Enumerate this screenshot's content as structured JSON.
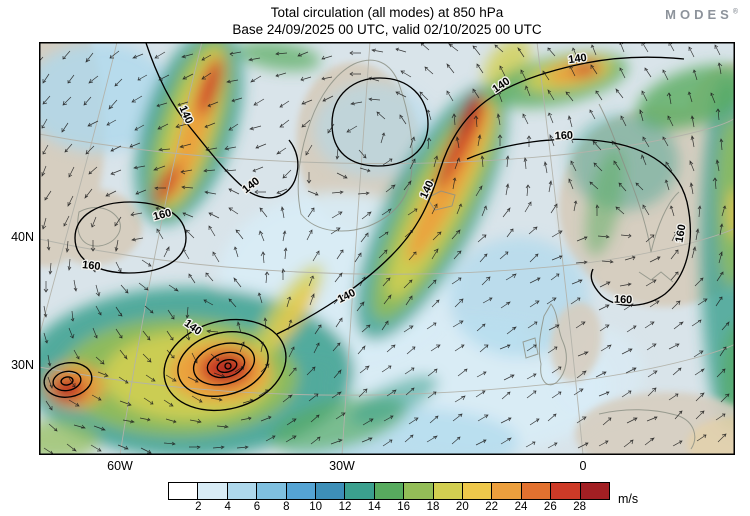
{
  "header": {
    "title_line1": "Total circulation (all modes) at 850 hPa",
    "title_line2": "Base 24/09/2025 00 UTC, valid 02/10/2025 00 UTC",
    "logo_text": "MODES",
    "logo_mark": "®"
  },
  "map": {
    "y_tick_labels": [
      "40N",
      "30N"
    ],
    "x_tick_labels": [
      "60W",
      "30W",
      "0"
    ],
    "contour_label_140": "140",
    "contour_label_160": "160"
  },
  "colorbar": {
    "tick_labels": [
      "2",
      "4",
      "6",
      "8",
      "10",
      "12",
      "14",
      "16",
      "18",
      "20",
      "22",
      "24",
      "26",
      "28"
    ],
    "unit": "m/s",
    "colors": [
      "#ffffff",
      "#d8ecf6",
      "#aed8ec",
      "#7fc0e0",
      "#55a4d4",
      "#3d8fb8",
      "#3ba08e",
      "#57ab5e",
      "#93bd57",
      "#d2cf51",
      "#eec84b",
      "#ec9f3d",
      "#e2712f",
      "#cd3a27",
      "#a21f23"
    ]
  },
  "chart_data": {
    "type": "heatmap",
    "title": "Total circulation (all modes) at 850 hPa",
    "subtitle": "Base 24/09/2025 00 UTC, valid 02/10/2025 00 UTC",
    "field": "wind speed of total circulation (all modes) at 850 hPa",
    "units": "m/s",
    "region": "North Atlantic and Europe",
    "x_ticks": [
      "60W",
      "30W",
      "0"
    ],
    "y_ticks": [
      "40N",
      "30N"
    ],
    "colorbar_levels": [
      2,
      4,
      6,
      8,
      10,
      12,
      14,
      16,
      18,
      20,
      22,
      24,
      26,
      28
    ],
    "colorbar_colors": [
      "#ffffff",
      "#d8ecf6",
      "#aed8ec",
      "#7fc0e0",
      "#55a4d4",
      "#3d8fb8",
      "#3ba08e",
      "#57ab5e",
      "#93bd57",
      "#d2cf51",
      "#eec84b",
      "#ec9f3d",
      "#e2712f",
      "#cd3a27",
      "#a21f23"
    ],
    "contour_labels_visible": [
      140,
      160
    ],
    "overlays": [
      "wind direction arrows (black)",
      "black circulation contours labeled 140 and 160",
      "gray coastlines and graticule"
    ],
    "notable_features": [
      "two cyclonic vortices with nested closed contours and wind maxima above 26 m/s near 30N around 60W-70W",
      "elongated high-wind band (cores above 24 m/s) stretching from the central Atlantic toward Iceland and Norway",
      "strong wind streak near Labrador Sea / southern Greenland with cores above 26 m/s",
      "closed 160 contour in the western Atlantic near 40N and a large 160 contour looping over central and eastern Europe",
      "light winds below 6 m/s over the central subtropical Atlantic, near the UK and over Iberia"
    ]
  }
}
